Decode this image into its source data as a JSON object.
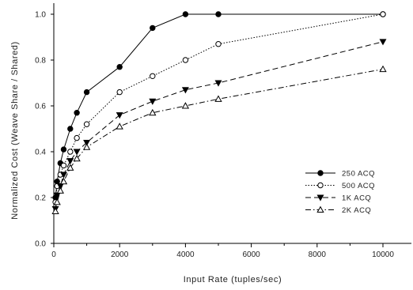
{
  "chart_data": {
    "type": "line",
    "title": "",
    "xlabel": "Input Rate (tuples/sec)",
    "ylabel": "Normalized Cost (Weave Share / Shared)",
    "xlim": [
      0,
      11000
    ],
    "ylim": [
      0.0,
      1.0
    ],
    "xticks": [
      0,
      2000,
      4000,
      6000,
      8000,
      10000
    ],
    "yticks": [
      "0.0",
      "0.2",
      "0.4",
      "0.6",
      "0.8",
      "1.0"
    ],
    "grid": false,
    "legend_position": "lower-right",
    "series": [
      {
        "name": "250 ACQ",
        "marker": "filled-circle",
        "dash": "solid",
        "points": [
          [
            50,
            0.2
          ],
          [
            100,
            0.27
          ],
          [
            200,
            0.35
          ],
          [
            300,
            0.41
          ],
          [
            500,
            0.5
          ],
          [
            700,
            0.57
          ],
          [
            1000,
            0.66
          ],
          [
            2000,
            0.77
          ],
          [
            3000,
            0.94
          ],
          [
            4000,
            1.0
          ],
          [
            5000,
            1.0
          ],
          [
            10000,
            1.0
          ]
        ]
      },
      {
        "name": "500 ACQ",
        "marker": "open-circle",
        "dash": "dotted",
        "points": [
          [
            50,
            0.18
          ],
          [
            100,
            0.25
          ],
          [
            200,
            0.3
          ],
          [
            300,
            0.34
          ],
          [
            500,
            0.4
          ],
          [
            700,
            0.46
          ],
          [
            1000,
            0.52
          ],
          [
            2000,
            0.66
          ],
          [
            3000,
            0.73
          ],
          [
            4000,
            0.8
          ],
          [
            5000,
            0.87
          ],
          [
            10000,
            1.0
          ]
        ]
      },
      {
        "name": "1K ACQ",
        "marker": "filled-triangle-down",
        "dash": "dashed",
        "points": [
          [
            50,
            0.15
          ],
          [
            100,
            0.21
          ],
          [
            200,
            0.25
          ],
          [
            300,
            0.3
          ],
          [
            500,
            0.36
          ],
          [
            700,
            0.4
          ],
          [
            1000,
            0.44
          ],
          [
            2000,
            0.56
          ],
          [
            3000,
            0.62
          ],
          [
            4000,
            0.67
          ],
          [
            5000,
            0.7
          ],
          [
            10000,
            0.88
          ]
        ]
      },
      {
        "name": "2K ACQ",
        "marker": "open-triangle-up",
        "dash": "dash-dot",
        "points": [
          [
            50,
            0.14
          ],
          [
            100,
            0.18
          ],
          [
            200,
            0.23
          ],
          [
            300,
            0.27
          ],
          [
            500,
            0.33
          ],
          [
            700,
            0.37
          ],
          [
            1000,
            0.42
          ],
          [
            2000,
            0.51
          ],
          [
            3000,
            0.57
          ],
          [
            4000,
            0.6
          ],
          [
            5000,
            0.63
          ],
          [
            10000,
            0.76
          ]
        ]
      }
    ]
  }
}
